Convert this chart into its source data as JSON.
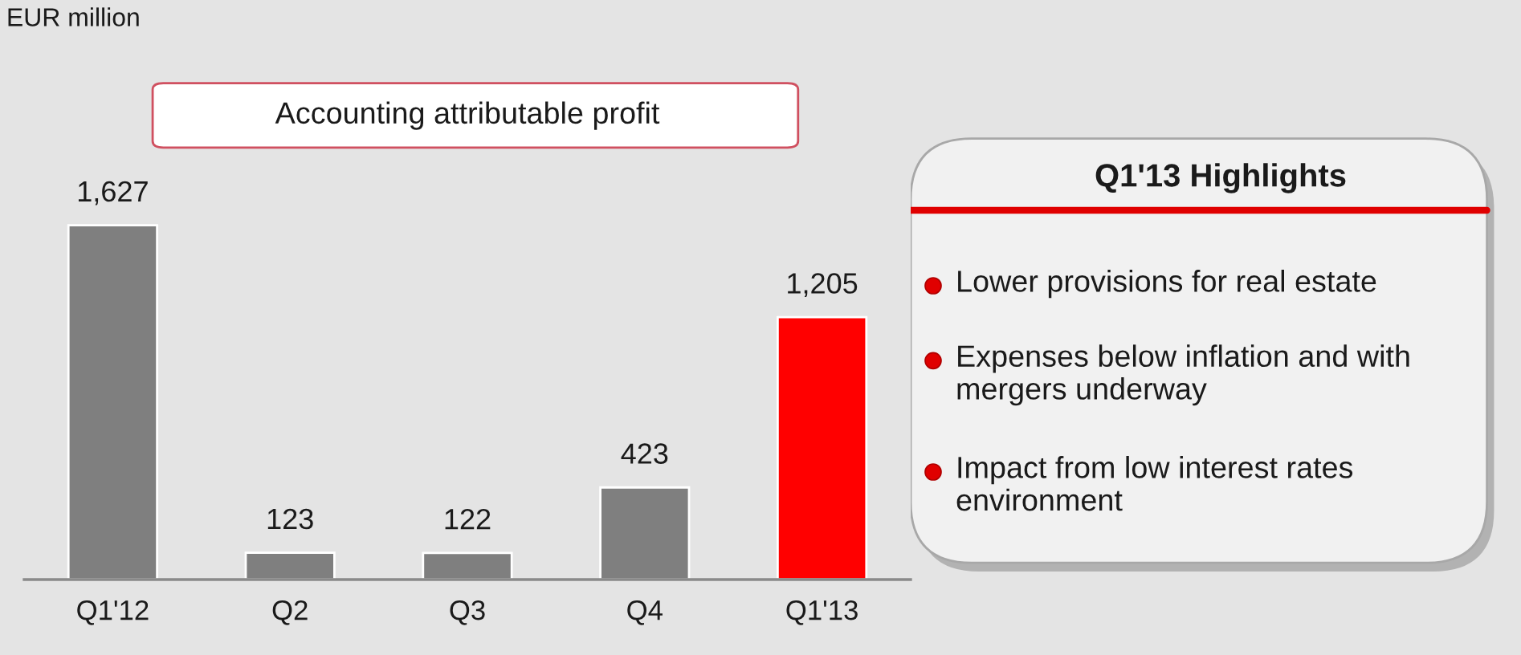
{
  "chart_data": [
    {
      "type": "bar",
      "title": "Accounting attributable profit",
      "ylabel": "EUR million",
      "categories": [
        "Q1'12",
        "Q2",
        "Q3",
        "Q4",
        "Q1'13"
      ],
      "values": [
        1627,
        123,
        122,
        423,
        1205
      ],
      "colors": [
        "#7f7f7f",
        "#7f7f7f",
        "#7f7f7f",
        "#7f7f7f",
        "#ff0000"
      ],
      "value_labels": [
        "1,627",
        "123",
        "122",
        "423",
        "1,205"
      ]
    },
    {
      "type": "other",
      "title": "Q1'13 Highlights",
      "annotations": [
        "Lower provisions for real estate",
        "Expenses below inflation and with\nmergers underway",
        "Impact from low interest rates\nenvironment"
      ]
    }
  ]
}
